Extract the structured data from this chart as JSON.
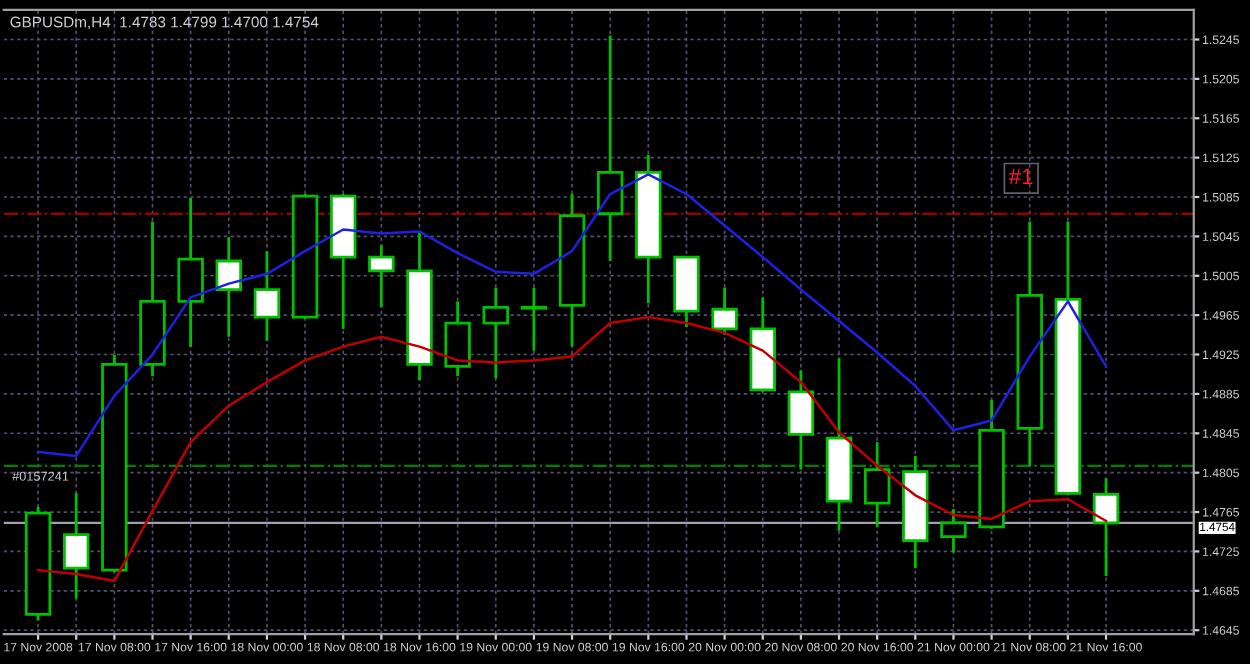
{
  "chart_data": {
    "type": "candlestick",
    "title": "GBPUSDm,H4  1.4783 1.4799 1.4700 1.4754",
    "categories": [
      "17 Nov 2008",
      null,
      "17 Nov 08:00",
      null,
      "17 Nov 16:00",
      null,
      "18 Nov 00:00",
      null,
      "18 Nov 08:00",
      null,
      "18 Nov 16:00",
      null,
      "19 Nov 00:00",
      null,
      "19 Nov 08:00",
      null,
      "19 Nov 16:00",
      null,
      "20 Nov 00:00",
      null,
      "20 Nov 08:00",
      null,
      "20 Nov 16:00",
      null,
      "21 Nov 00:00",
      null,
      "21 Nov 08:00",
      null,
      "21 Nov 16:00"
    ],
    "ohlc": [
      [
        1.4661,
        1.477,
        1.4655,
        1.4764
      ],
      [
        1.4742,
        1.4784,
        1.4677,
        1.4708
      ],
      [
        1.4706,
        1.4925,
        1.4704,
        1.4915
      ],
      [
        1.4915,
        1.506,
        1.4903,
        1.4979
      ],
      [
        1.4979,
        1.5084,
        1.4933,
        1.5022
      ],
      [
        1.502,
        1.5044,
        1.4943,
        1.4991
      ],
      [
        1.4991,
        1.503,
        1.4939,
        1.4963
      ],
      [
        1.4963,
        1.5088,
        1.4961,
        1.5086
      ],
      [
        1.5086,
        1.5088,
        1.4951,
        1.5024
      ],
      [
        1.5024,
        1.5036,
        1.4973,
        1.501
      ],
      [
        1.501,
        1.505,
        1.4899,
        1.4915
      ],
      [
        1.4913,
        1.4979,
        1.4903,
        1.4957
      ],
      [
        1.4957,
        1.4993,
        1.4901,
        1.4973
      ],
      [
        1.4972,
        1.4993,
        1.4929,
        1.4973
      ],
      [
        1.4975,
        1.5088,
        1.4933,
        1.5066
      ],
      [
        1.5068,
        1.5249,
        1.502,
        1.511
      ],
      [
        1.511,
        1.5128,
        1.4977,
        1.5024
      ],
      [
        1.5024,
        1.5024,
        1.4953,
        1.4969
      ],
      [
        1.4971,
        1.4993,
        1.4945,
        1.4951
      ],
      [
        1.4951,
        1.4983,
        1.4887,
        1.4889
      ],
      [
        1.4887,
        1.4909,
        1.4808,
        1.4844
      ],
      [
        1.484,
        1.4921,
        1.4746,
        1.4776
      ],
      [
        1.4774,
        1.4836,
        1.475,
        1.4808
      ],
      [
        1.4806,
        1.4822,
        1.4708,
        1.4736
      ],
      [
        1.474,
        1.4768,
        1.4724,
        1.4754
      ],
      [
        1.475,
        1.4879,
        1.4748,
        1.4848
      ],
      [
        1.485,
        1.506,
        1.4812,
        1.4985
      ],
      [
        1.4981,
        1.506,
        1.4782,
        1.4784
      ],
      [
        1.4783,
        1.4799,
        1.47,
        1.4754
      ]
    ],
    "color": "#00c000",
    "colors": [
      "#000000",
      "#ffffff",
      "#000000",
      "#000000",
      "#000000",
      "#ffffff",
      "#ffffff",
      "#000000",
      "#ffffff",
      "#ffffff",
      "#ffffff",
      "#000000",
      "#000000",
      "#000000",
      "#000000",
      "#000000",
      "#ffffff",
      "#ffffff",
      "#ffffff",
      "#ffffff",
      "#ffffff",
      "#ffffff",
      "#000000",
      "#ffffff",
      "#000000",
      "#000000",
      "#000000",
      "#ffffff",
      "#ffffff"
    ],
    "series": [
      {
        "type": "line",
        "color": "#2020e0",
        "values": [
          1.4826,
          1.4822,
          1.4883,
          1.4925,
          1.4983,
          1.4997,
          1.5007,
          1.503,
          1.5052,
          1.5048,
          1.505,
          1.5028,
          1.5009,
          1.5007,
          1.503,
          1.5088,
          1.5108,
          1.5088,
          1.5056,
          1.5024,
          1.4991,
          1.4959,
          1.4927,
          1.4893,
          1.4848,
          1.4858,
          1.4923,
          1.4979,
          1.4913
        ]
      },
      {
        "type": "line",
        "color": "#c00000",
        "values": [
          1.4706,
          1.4702,
          1.4695,
          1.4766,
          1.4836,
          1.4873,
          1.4897,
          1.4919,
          1.4933,
          1.4943,
          1.4933,
          1.4919,
          1.4917,
          1.4919,
          1.4923,
          1.4957,
          1.4963,
          1.4957,
          1.4947,
          1.4929,
          1.4897,
          1.4846,
          1.4812,
          1.4782,
          1.4762,
          1.4758,
          1.4776,
          1.4778,
          1.4756
        ]
      }
    ],
    "ref_lines": [
      {
        "axis": "y",
        "value": 1.5068,
        "color": "#b00000",
        "line_style": "dashdot"
      },
      {
        "axis": "y",
        "value": 1.4812,
        "color": "#008000",
        "line_style": "dashdot"
      },
      {
        "axis": "y",
        "value": 1.4754,
        "color": "#a0a0b0",
        "line_style": "solid",
        "label": "1.4754"
      }
    ],
    "annotations": [
      {
        "text": "#1",
        "y": 1.5104
      },
      {
        "text": "#0157241",
        "y": 1.4812
      }
    ],
    "ylim": [
      1.4641,
      1.5275
    ],
    "yticks": [
      1.5245,
      1.5205,
      1.5165,
      1.5125,
      1.5085,
      1.5045,
      1.5005,
      1.4965,
      1.4925,
      1.4885,
      1.4845,
      1.4805,
      1.4765,
      1.4725,
      1.4685,
      1.4645
    ],
    "grid": true,
    "legend": false
  }
}
